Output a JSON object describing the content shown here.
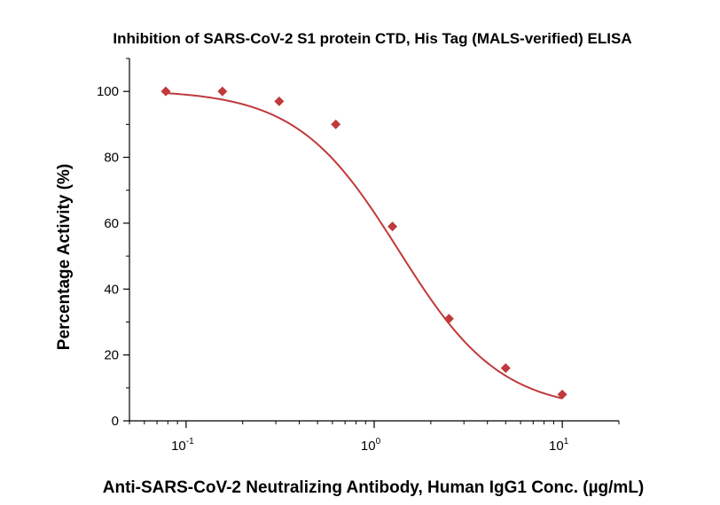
{
  "chart_data": {
    "type": "scatter",
    "title": "Inhibition of SARS-CoV-2 S1 protein CTD, His Tag (MALS-verified) ELISA",
    "xlabel": "Anti-SARS-CoV-2 Neutralizing Antibody, Human IgG1 Conc. (µg/mL)",
    "ylabel": "Percentage Activity (%)",
    "x_scale": "log",
    "xlim": [
      0.05,
      20
    ],
    "ylim": [
      0,
      110
    ],
    "x_ticks": [
      {
        "value": 0.1,
        "base": "10",
        "exp": "-1"
      },
      {
        "value": 1,
        "base": "10",
        "exp": "0"
      },
      {
        "value": 10,
        "base": "10",
        "exp": "1"
      }
    ],
    "y_ticks": [
      "0",
      "20",
      "40",
      "60",
      "80",
      "100"
    ],
    "color": "#c0393b",
    "series": [
      {
        "name": "Percentage Activity",
        "x": [
          0.078,
          0.156,
          0.3125,
          0.625,
          1.25,
          2.5,
          5,
          10
        ],
        "y": [
          100,
          100,
          97,
          90,
          59,
          31,
          16,
          8
        ]
      }
    ],
    "fit": {
      "model": "4PL",
      "top": 100.5,
      "bottom": 3,
      "ic50": 1.35,
      "hill": 1.6
    }
  }
}
